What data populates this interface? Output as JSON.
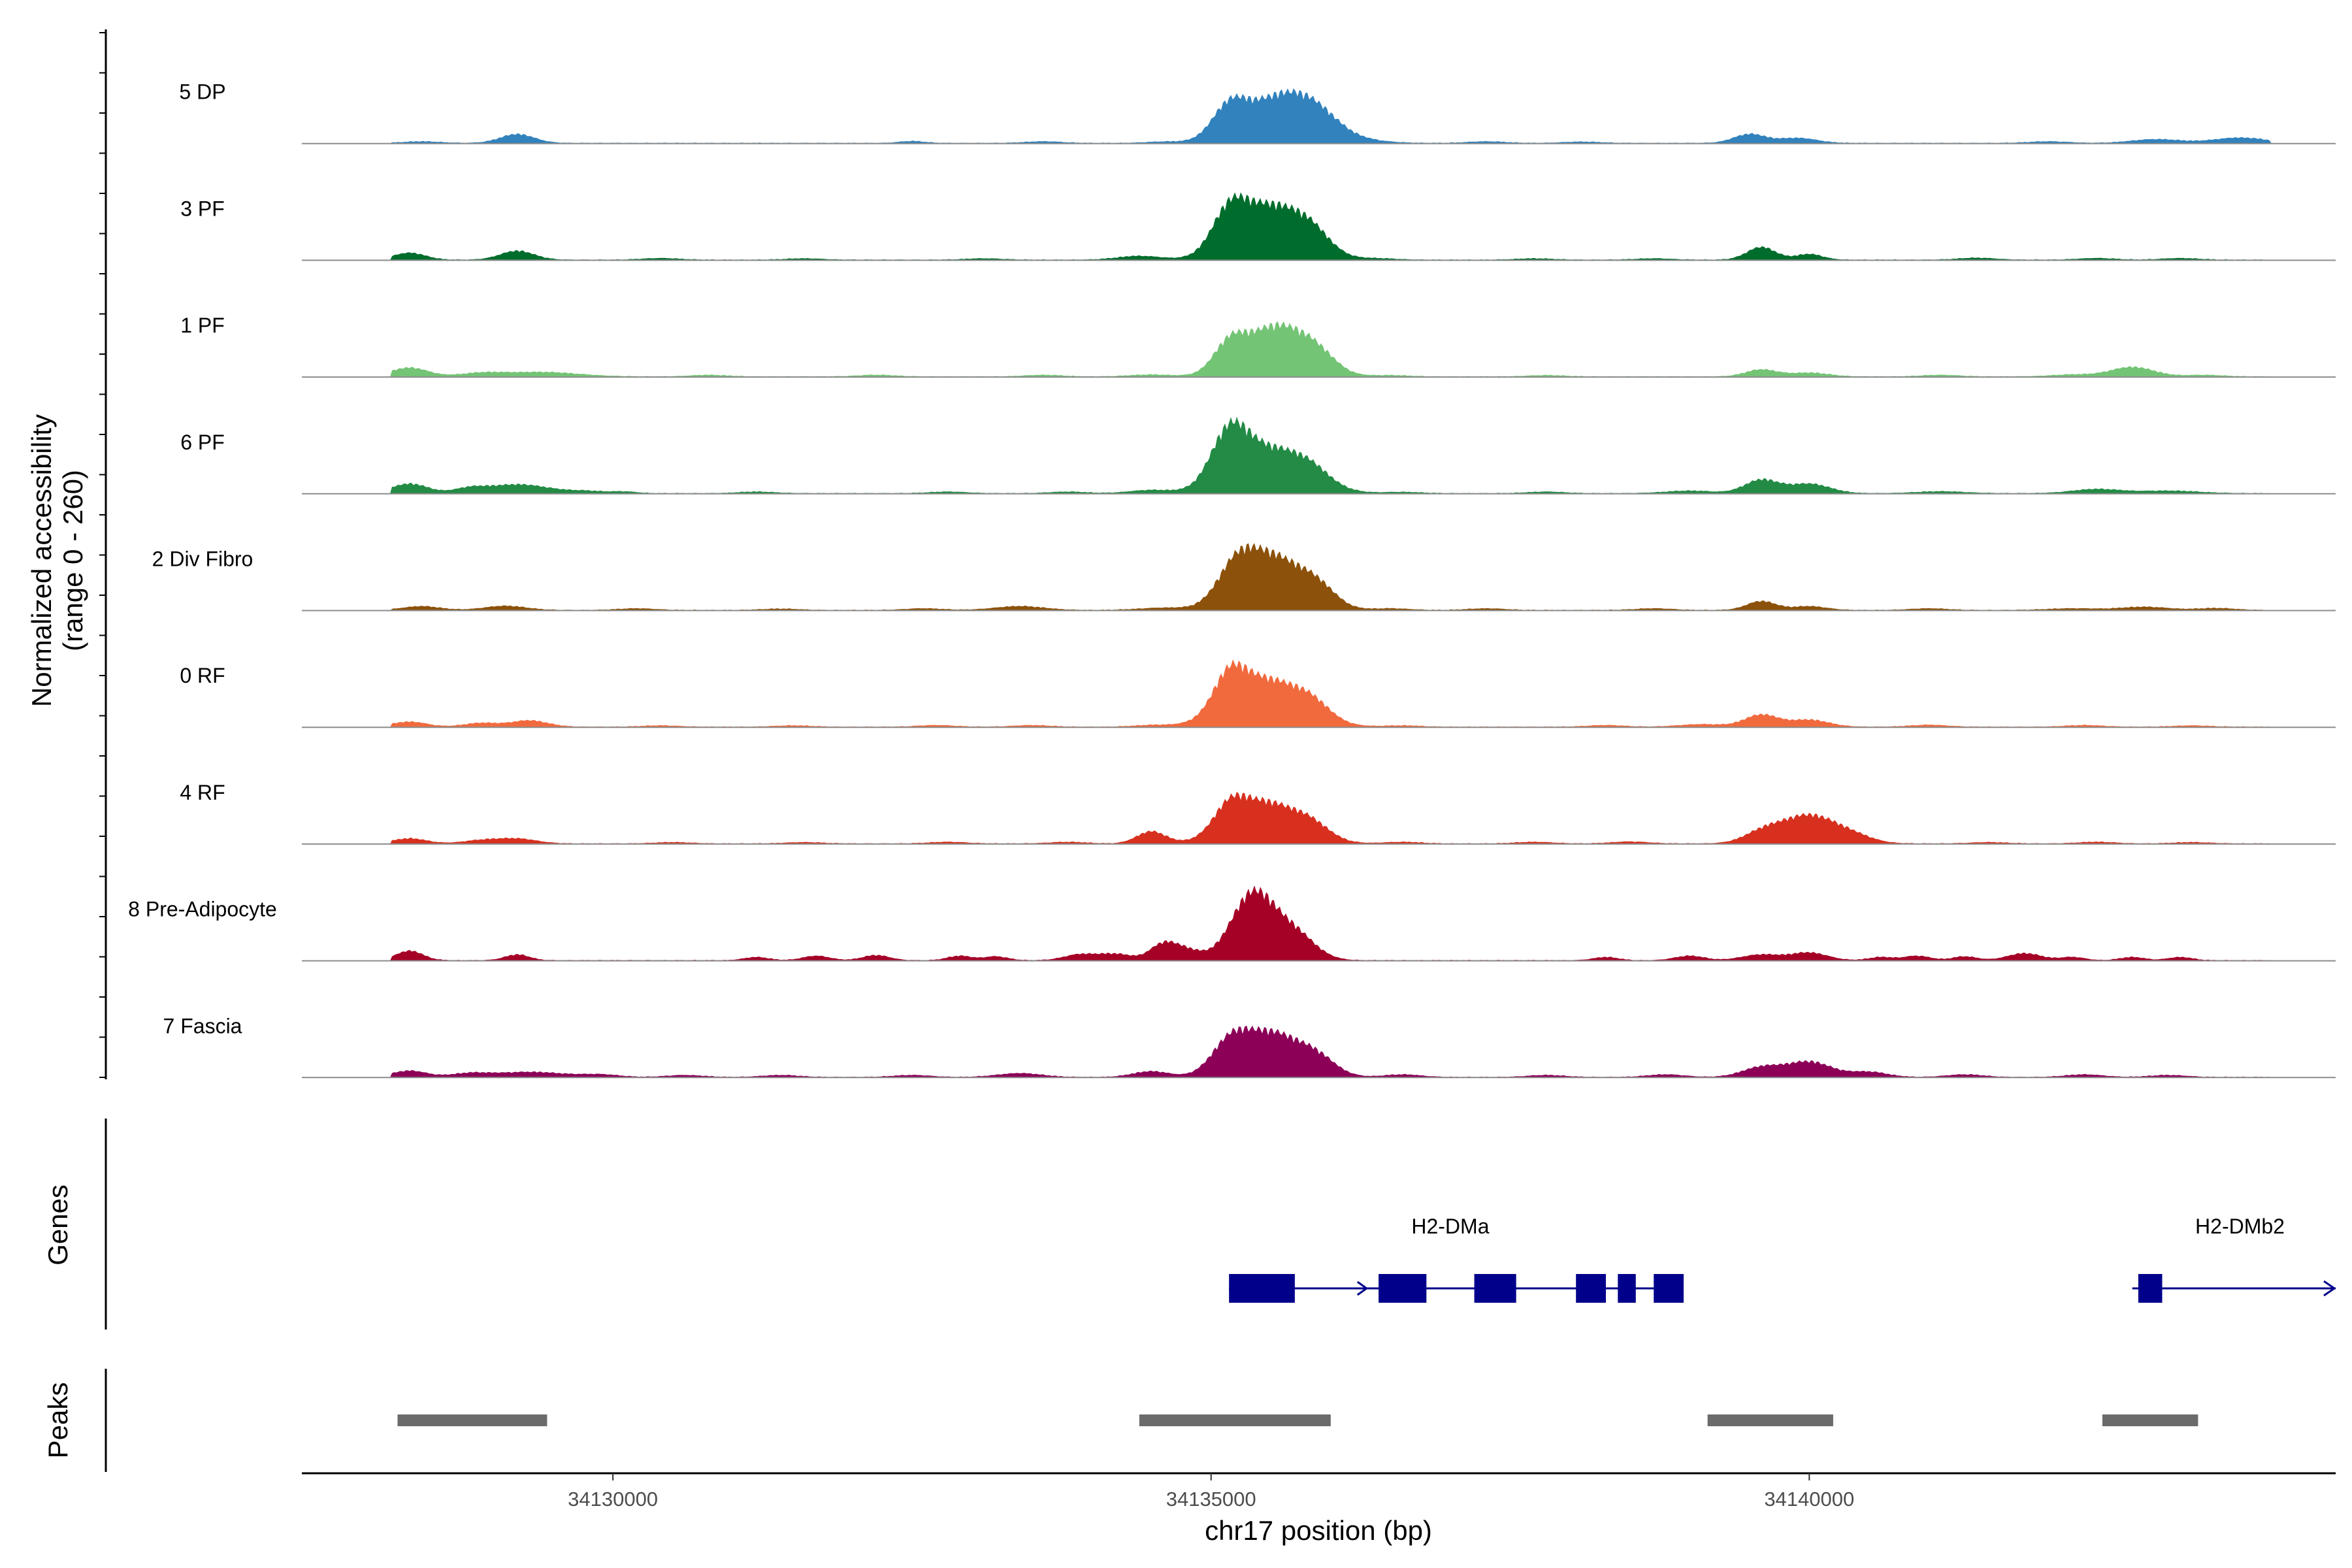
{
  "chart_data": {
    "type": "area",
    "title": "",
    "xlabel": "chr17 position (bp)",
    "ylabel_line1": "Normalized accessibility",
    "ylabel_line2": "(range 0 - 260)",
    "ylim": [
      0,
      260
    ],
    "xlim": [
      34127400,
      34144400
    ],
    "x_ticks": [
      34130000,
      34135000,
      34140000
    ],
    "x_tick_labels": [
      "34130000",
      "34135000",
      "34140000"
    ],
    "genes_label": "Genes",
    "peaks_label": "Peaks",
    "series": [
      {
        "name": "5 DP",
        "color": "#3182bd",
        "peaks": [
          [
            34128400,
            5,
            150
          ],
          [
            34129200,
            28,
            140
          ],
          [
            34132500,
            6,
            100
          ],
          [
            34133600,
            5,
            150
          ],
          [
            34134600,
            4,
            150
          ],
          [
            34135150,
            90,
            140
          ],
          [
            34135600,
            150,
            300
          ],
          [
            34135900,
            35,
            180
          ],
          [
            34136300,
            5,
            200
          ],
          [
            34137300,
            5,
            150
          ],
          [
            34138100,
            4,
            150
          ],
          [
            34139500,
            28,
            130
          ],
          [
            34139900,
            16,
            160
          ],
          [
            34142000,
            5,
            160
          ],
          [
            34142900,
            12,
            200
          ],
          [
            34143600,
            17,
            220
          ]
        ]
      },
      {
        "name": "3 PF",
        "color": "#006d2c",
        "peaks": [
          [
            34128300,
            22,
            130
          ],
          [
            34129200,
            28,
            140
          ],
          [
            34130400,
            5,
            150
          ],
          [
            34131600,
            4,
            150
          ],
          [
            34133100,
            4,
            150
          ],
          [
            34134400,
            12,
            180
          ],
          [
            34135150,
            110,
            140
          ],
          [
            34135500,
            170,
            280
          ],
          [
            34135850,
            45,
            150
          ],
          [
            34136400,
            4,
            150
          ],
          [
            34137700,
            4,
            150
          ],
          [
            34138700,
            4,
            150
          ],
          [
            34139600,
            40,
            120
          ],
          [
            34140000,
            18,
            110
          ],
          [
            34141400,
            6,
            150
          ],
          [
            34142400,
            5,
            150
          ],
          [
            34143100,
            5,
            150
          ]
        ]
      },
      {
        "name": "1 PF",
        "color": "#74c476",
        "peaks": [
          [
            34128300,
            28,
            150
          ],
          [
            34128900,
            10,
            180
          ],
          [
            34129400,
            14,
            300
          ],
          [
            34130800,
            5,
            150
          ],
          [
            34132200,
            5,
            150
          ],
          [
            34133600,
            5,
            150
          ],
          [
            34134500,
            6,
            180
          ],
          [
            34135150,
            80,
            130
          ],
          [
            34135550,
            160,
            260
          ],
          [
            34135900,
            40,
            150
          ],
          [
            34136500,
            4,
            150
          ],
          [
            34137800,
            4,
            150
          ],
          [
            34139600,
            22,
            130
          ],
          [
            34140000,
            12,
            160
          ],
          [
            34141100,
            5,
            150
          ],
          [
            34142200,
            6,
            180
          ],
          [
            34142700,
            30,
            180
          ],
          [
            34143300,
            5,
            150
          ]
        ]
      },
      {
        "name": "6 PF",
        "color": "#238b45",
        "peaks": [
          [
            34128300,
            30,
            150
          ],
          [
            34128800,
            12,
            120
          ],
          [
            34129200,
            28,
            270
          ],
          [
            34129800,
            6,
            150
          ],
          [
            34130100,
            5,
            100
          ],
          [
            34131200,
            5,
            150
          ],
          [
            34132800,
            5,
            150
          ],
          [
            34133800,
            5,
            150
          ],
          [
            34134500,
            10,
            180
          ],
          [
            34135150,
            150,
            150
          ],
          [
            34135500,
            140,
            300
          ],
          [
            34135850,
            30,
            150
          ],
          [
            34136600,
            4,
            150
          ],
          [
            34137800,
            5,
            150
          ],
          [
            34139000,
            8,
            200
          ],
          [
            34139600,
            42,
            140
          ],
          [
            34140000,
            30,
            170
          ],
          [
            34141100,
            6,
            200
          ],
          [
            34142400,
            13,
            200
          ],
          [
            34143000,
            8,
            250
          ]
        ]
      },
      {
        "name": "2 Div Fibro",
        "color": "#8c510a",
        "peaks": [
          [
            34128400,
            12,
            150
          ],
          [
            34129100,
            13,
            170
          ],
          [
            34130200,
            5,
            150
          ],
          [
            34131400,
            4,
            150
          ],
          [
            34132600,
            5,
            150
          ],
          [
            34133400,
            12,
            200
          ],
          [
            34134600,
            7,
            200
          ],
          [
            34135200,
            90,
            150
          ],
          [
            34135500,
            170,
            260
          ],
          [
            34135900,
            50,
            150
          ],
          [
            34136500,
            5,
            150
          ],
          [
            34137300,
            5,
            150
          ],
          [
            34138700,
            5,
            150
          ],
          [
            34139600,
            28,
            120
          ],
          [
            34140000,
            12,
            140
          ],
          [
            34141000,
            5,
            150
          ],
          [
            34142200,
            5,
            200
          ],
          [
            34142800,
            10,
            200
          ],
          [
            34143400,
            6,
            150
          ]
        ]
      },
      {
        "name": "0 RF",
        "color": "#f16a3e",
        "peaks": [
          [
            34128300,
            16,
            140
          ],
          [
            34128900,
            12,
            140
          ],
          [
            34129300,
            20,
            150
          ],
          [
            34130400,
            4,
            150
          ],
          [
            34131500,
            4,
            150
          ],
          [
            34132700,
            5,
            150
          ],
          [
            34133500,
            5,
            150
          ],
          [
            34134500,
            5,
            150
          ],
          [
            34135150,
            100,
            130
          ],
          [
            34135450,
            150,
            300
          ],
          [
            34135850,
            40,
            150
          ],
          [
            34136600,
            4,
            150
          ],
          [
            34138300,
            5,
            150
          ],
          [
            34139100,
            8,
            180
          ],
          [
            34139600,
            38,
            140
          ],
          [
            34140000,
            22,
            160
          ],
          [
            34141000,
            6,
            150
          ],
          [
            34142300,
            5,
            150
          ],
          [
            34143200,
            4,
            150
          ]
        ]
      },
      {
        "name": "4 RF",
        "color": "#d7301f",
        "peaks": [
          [
            34128300,
            16,
            140
          ],
          [
            34128900,
            10,
            150
          ],
          [
            34129200,
            15,
            160
          ],
          [
            34130500,
            4,
            150
          ],
          [
            34131600,
            4,
            150
          ],
          [
            34132800,
            5,
            150
          ],
          [
            34133800,
            5,
            150
          ],
          [
            34134500,
            38,
            120
          ],
          [
            34135150,
            70,
            130
          ],
          [
            34135450,
            130,
            280
          ],
          [
            34135850,
            35,
            150
          ],
          [
            34136600,
            5,
            150
          ],
          [
            34137700,
            5,
            150
          ],
          [
            34138500,
            6,
            150
          ],
          [
            34139600,
            26,
            150
          ],
          [
            34140000,
            90,
            250
          ],
          [
            34140400,
            12,
            150
          ],
          [
            34141500,
            4,
            150
          ],
          [
            34142400,
            5,
            150
          ],
          [
            34143200,
            4,
            150
          ]
        ]
      },
      {
        "name": "8 Pre-Adipocyte",
        "color": "#a50026",
        "peaks": [
          [
            34128300,
            30,
            110
          ],
          [
            34129200,
            18,
            100
          ],
          [
            34131200,
            10,
            100
          ],
          [
            34131700,
            14,
            110
          ],
          [
            34132200,
            16,
            110
          ],
          [
            34132900,
            14,
            100
          ],
          [
            34133200,
            12,
            100
          ],
          [
            34133900,
            18,
            130
          ],
          [
            34134200,
            20,
            140
          ],
          [
            34134600,
            50,
            110
          ],
          [
            34134800,
            30,
            120
          ],
          [
            34135350,
            210,
            180
          ],
          [
            34135700,
            80,
            170
          ],
          [
            34138300,
            10,
            100
          ],
          [
            34139000,
            14,
            120
          ],
          [
            34139600,
            18,
            160
          ],
          [
            34140000,
            24,
            150
          ],
          [
            34140600,
            10,
            100
          ],
          [
            34140900,
            14,
            110
          ],
          [
            34141300,
            12,
            100
          ],
          [
            34141800,
            22,
            140
          ],
          [
            34142200,
            10,
            100
          ],
          [
            34142700,
            10,
            100
          ],
          [
            34143100,
            10,
            100
          ]
        ]
      },
      {
        "name": "7 Fascia",
        "color": "#8c0058",
        "peaks": [
          [
            34128300,
            20,
            140
          ],
          [
            34128800,
            10,
            150
          ],
          [
            34129300,
            16,
            300
          ],
          [
            34129900,
            7,
            150
          ],
          [
            34130600,
            6,
            150
          ],
          [
            34131400,
            6,
            150
          ],
          [
            34132500,
            6,
            150
          ],
          [
            34133400,
            12,
            180
          ],
          [
            34134500,
            18,
            150
          ],
          [
            34135150,
            80,
            150
          ],
          [
            34135500,
            140,
            260
          ],
          [
            34135900,
            40,
            150
          ],
          [
            34136600,
            8,
            150
          ],
          [
            34137800,
            6,
            150
          ],
          [
            34138800,
            8,
            150
          ],
          [
            34139600,
            30,
            160
          ],
          [
            34140000,
            48,
            190
          ],
          [
            34140500,
            16,
            150
          ],
          [
            34141300,
            8,
            150
          ],
          [
            34142300,
            8,
            150
          ],
          [
            34143000,
            6,
            150
          ]
        ]
      }
    ],
    "genes": [
      {
        "name": "H2-DMa",
        "start": 34135150,
        "end": 34138900,
        "strand": "+",
        "exons": [
          [
            34135150,
            34135700
          ],
          [
            34136400,
            34136800
          ],
          [
            34137200,
            34137550
          ],
          [
            34138050,
            34138300
          ],
          [
            34138400,
            34138550
          ],
          [
            34138700,
            34138950
          ]
        ]
      },
      {
        "name": "H2-DMb2",
        "start": 34142700,
        "end": 34144400,
        "strand": "+",
        "exons": [
          [
            34142750,
            34142950
          ]
        ]
      }
    ],
    "peaks": [
      [
        34128200,
        34129450
      ],
      [
        34134400,
        34136000
      ],
      [
        34139150,
        34140200
      ],
      [
        34142450,
        34143250
      ]
    ]
  }
}
